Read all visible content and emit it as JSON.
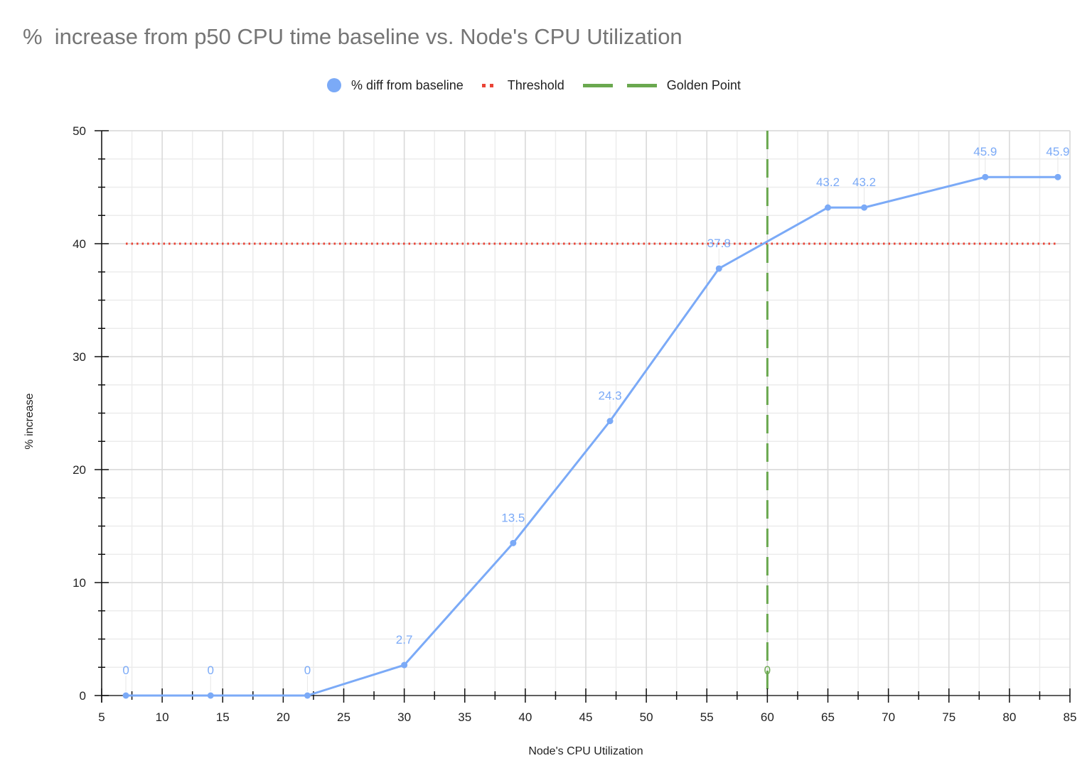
{
  "title": "%  increase from p50 CPU time baseline vs. Node's CPU Utilization",
  "legend": [
    {
      "name": "% diff from baseline",
      "marker": "circle",
      "color": "#7baaf7"
    },
    {
      "name": "Threshold",
      "marker": "dotted-line",
      "color": "#ea4335"
    },
    {
      "name": "Golden Point",
      "marker": "dashed-line",
      "color": "#6aa84f"
    }
  ],
  "colors": {
    "series": "#7baaf7",
    "threshold": "#ea4335",
    "golden": "#6aa84f",
    "grid_major": "#d9d9d9",
    "grid_minor": "#ececec",
    "axis": "#333333"
  },
  "chart_data": {
    "type": "line",
    "title": "%  increase from p50 CPU time baseline vs. Node's CPU Utilization",
    "xlabel": "Node's CPU Utilization",
    "ylabel": "% increase",
    "xlim": [
      5,
      85
    ],
    "ylim": [
      0,
      50
    ],
    "x_ticks": [
      5,
      10,
      15,
      20,
      25,
      30,
      35,
      40,
      45,
      50,
      55,
      60,
      65,
      70,
      75,
      80,
      85
    ],
    "y_ticks": [
      0,
      10,
      20,
      30,
      40,
      50
    ],
    "grid": true,
    "minor_grid": true,
    "legend_position": "top",
    "series": [
      {
        "name": "% diff from baseline",
        "type": "line",
        "x": [
          7,
          14,
          22,
          30,
          39,
          47,
          56,
          65,
          68,
          78,
          84
        ],
        "values": [
          0,
          0,
          0,
          2.7,
          13.5,
          24.3,
          37.8,
          43.2,
          43.2,
          45.9,
          45.9
        ],
        "labels": [
          "0",
          "0",
          "0",
          "2.7",
          "13.5",
          "24.3",
          "37.8",
          "43.2",
          "43.2",
          "45.9",
          "45.9"
        ]
      },
      {
        "name": "Threshold",
        "type": "line",
        "style": "dotted",
        "x": [
          7,
          84
        ],
        "values": [
          40,
          40
        ]
      },
      {
        "name": "Golden Point",
        "type": "vertical-line",
        "style": "dashed",
        "x": [
          60,
          60
        ],
        "values": [
          0,
          50
        ],
        "labels": [
          "0"
        ]
      }
    ]
  }
}
